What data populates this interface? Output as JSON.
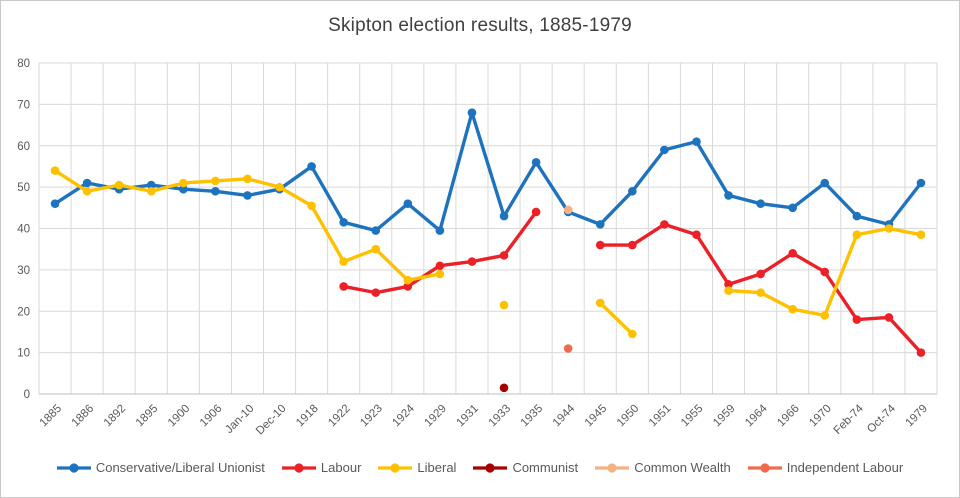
{
  "chart_data": {
    "type": "line",
    "title": "Skipton election results, 1885-1979",
    "xlabel": "",
    "ylabel": "",
    "ylim": [
      0,
      80
    ],
    "yticks": [
      0,
      10,
      20,
      30,
      40,
      50,
      60,
      70,
      80
    ],
    "grid": true,
    "legend_position": "bottom",
    "grid_color": "#d9d9d9",
    "axis_color": "#bfbfbf",
    "text_color": "#595959",
    "title_color": "#404040",
    "categories": [
      "1885",
      "1886",
      "1892",
      "1895",
      "1900",
      "1906",
      "Jan-10",
      "Dec-10",
      "1918",
      "1922",
      "1923",
      "1924",
      "1929",
      "1931",
      "1933",
      "1935",
      "1944",
      "1945",
      "1950",
      "1951",
      "1955",
      "1959",
      "1964",
      "1966",
      "1970",
      "Feb-74",
      "Oct-74",
      "1979"
    ],
    "series": [
      {
        "name": "Conservative/Liberal Unionist",
        "color": "#1e73be",
        "values": [
          46,
          51,
          49.5,
          50.5,
          49.5,
          49,
          48,
          49.5,
          55,
          41.5,
          39.5,
          46,
          39.5,
          68,
          43,
          56,
          44,
          41,
          49,
          59,
          61,
          48,
          46,
          45,
          51,
          43,
          41,
          51
        ]
      },
      {
        "name": "Labour",
        "color": "#ec2027",
        "values": [
          null,
          null,
          null,
          null,
          null,
          null,
          null,
          null,
          null,
          26,
          24.5,
          26,
          31,
          32,
          33.5,
          44,
          null,
          36,
          36,
          41,
          38.5,
          26.5,
          29,
          34,
          29.5,
          18,
          18.5,
          10
        ]
      },
      {
        "name": "Liberal",
        "color": "#ffc000",
        "values": [
          54,
          49,
          50.5,
          49,
          51,
          51.5,
          52,
          50,
          45.5,
          32,
          35,
          27.5,
          29,
          null,
          21.5,
          null,
          null,
          22,
          14.5,
          null,
          null,
          25,
          24.5,
          20.5,
          19,
          38.5,
          40,
          38.5
        ]
      },
      {
        "name": "Communist",
        "color": "#a80000",
        "values": [
          null,
          null,
          null,
          null,
          null,
          null,
          null,
          null,
          null,
          null,
          null,
          null,
          null,
          null,
          1.5,
          null,
          null,
          null,
          null,
          null,
          null,
          null,
          null,
          null,
          null,
          null,
          null,
          null
        ]
      },
      {
        "name": "Common Wealth",
        "color": "#f4b183",
        "values": [
          null,
          null,
          null,
          null,
          null,
          null,
          null,
          null,
          null,
          null,
          null,
          null,
          null,
          null,
          null,
          null,
          44.5,
          null,
          null,
          null,
          null,
          null,
          null,
          null,
          null,
          null,
          null,
          null
        ]
      },
      {
        "name": "Independent Labour",
        "color": "#ee6c4d",
        "values": [
          null,
          null,
          null,
          null,
          null,
          null,
          null,
          null,
          null,
          null,
          null,
          null,
          null,
          null,
          null,
          null,
          11,
          null,
          null,
          null,
          null,
          null,
          null,
          null,
          null,
          null,
          null,
          null
        ]
      }
    ]
  }
}
